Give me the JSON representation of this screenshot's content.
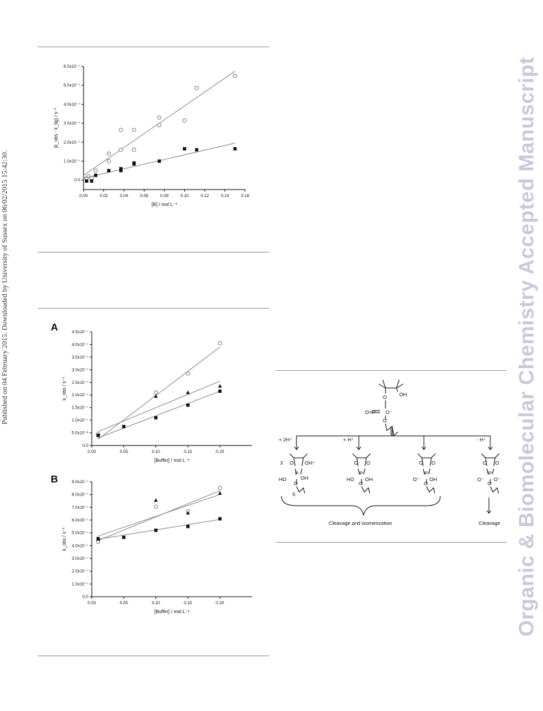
{
  "side_note": "Published on 04 February 2015. Downloaded by University of Sussex on 06/02/2015 15:42:30.",
  "watermark": "Organic & Biomolecular Chemistry Accepted Manuscript",
  "chart_data": [
    {
      "type": "scatter",
      "xlabel": "[B] / mol L⁻¹",
      "ylabel": "(k_obs - k_lig) / s⁻¹",
      "xlim": [
        0.0,
        0.16
      ],
      "ylim": [
        -5e-08,
        6e-07
      ],
      "xticks": [
        "0.00",
        "0.02",
        "0.04",
        "0.06",
        "0.08",
        "0.10",
        "0.12",
        "0.14",
        "0.16"
      ],
      "yticks": [
        "0.0",
        "1.0x10⁻⁷",
        "2.0x10⁻⁷",
        "3.0x10⁻⁷",
        "4.0x10⁻⁷",
        "5.0x10⁻⁷",
        "6.0x10⁻⁷"
      ],
      "series": [
        {
          "marker": "open-circle",
          "x": [
            0.003,
            0.005,
            0.008,
            0.012,
            0.025,
            0.025,
            0.037,
            0.037,
            0.05,
            0.05,
            0.075,
            0.075,
            0.1,
            0.112,
            0.15
          ],
          "y": [
            1e-08,
            2e-08,
            1e-08,
            5e-08,
            1.4e-07,
            1e-07,
            2.65e-07,
            1.6e-07,
            2.65e-07,
            1.6e-07,
            3.3e-07,
            2.9e-07,
            3.15e-07,
            4.85e-07,
            5.5e-07
          ],
          "fit": [
            [
              0.0,
              2.5e-08
            ],
            [
              0.15,
              5.75e-07
            ]
          ]
        },
        {
          "marker": "filled-square",
          "x": [
            0.003,
            0.008,
            0.012,
            0.025,
            0.037,
            0.037,
            0.05,
            0.05,
            0.075,
            0.1,
            0.112,
            0.15
          ],
          "y": [
            -5e-09,
            -5e-09,
            2.5e-08,
            5e-08,
            6e-08,
            5e-08,
            9e-08,
            8.5e-08,
            1e-07,
            1.65e-07,
            1.6e-07,
            1.65e-07
          ],
          "fit": [
            [
              0.0,
              1e-08
            ],
            [
              0.15,
              1.95e-07
            ]
          ]
        }
      ]
    },
    {
      "type": "scatter",
      "panel": "A",
      "xlabel": "[Buffer] / mol L⁻¹",
      "ylabel": "k_obs / s⁻¹",
      "xlim": [
        0.0,
        0.25
      ],
      "ylim": [
        0.0,
        4.5e-07
      ],
      "xticks": [
        "0.00",
        "0.05",
        "0.10",
        "0.15",
        "0.20"
      ],
      "yticks": [
        "0.0",
        "5.0x10⁻⁸",
        "1.0x10⁻⁷",
        "1.5x10⁻⁷",
        "2.0x10⁻⁷",
        "2.5x10⁻⁷",
        "3.0x10⁻⁷",
        "3.5x10⁻⁷",
        "4.0x10⁻⁷",
        "4.5x10⁻⁷"
      ],
      "series": [
        {
          "marker": "open-circle",
          "x": [
            0.01,
            0.1,
            0.15,
            0.2
          ],
          "y": [
            4.5e-08,
            2.1e-07,
            2.85e-07,
            4.05e-07
          ],
          "fit": [
            [
              0.01,
              2.5e-08
            ],
            [
              0.2,
              3.9e-07
            ]
          ]
        },
        {
          "marker": "filled-triangle",
          "x": [
            0.01,
            0.1,
            0.15,
            0.2
          ],
          "y": [
            4e-08,
            1.95e-07,
            2.1e-07,
            2.35e-07
          ],
          "fit": [
            [
              0.01,
              5.5e-08
            ],
            [
              0.2,
              2.55e-07
            ]
          ]
        },
        {
          "marker": "filled-square",
          "x": [
            0.01,
            0.05,
            0.1,
            0.15,
            0.2
          ],
          "y": [
            4e-08,
            7.5e-08,
            1.1e-07,
            1.6e-07,
            2.15e-07
          ],
          "fit": [
            [
              0.01,
              3e-08
            ],
            [
              0.2,
              2.15e-07
            ]
          ]
        }
      ]
    },
    {
      "type": "scatter",
      "panel": "B",
      "xlabel": "[Buffer] / mol L⁻¹",
      "ylabel": "k_obs / s⁻¹",
      "xlim": [
        0.0,
        0.25
      ],
      "ylim": [
        0.0,
        9e-07
      ],
      "xticks": [
        "0.00",
        "0.05",
        "0.10",
        "0.15",
        "0.20"
      ],
      "yticks": [
        "0.0",
        "1.0x10⁻⁷",
        "2.0x10⁻⁷",
        "3.0x10⁻⁷",
        "4.0x10⁻⁷",
        "5.0x10⁻⁷",
        "6.0x10⁻⁷",
        "7.0x10⁻⁷",
        "8.0x10⁻⁷",
        "9.0x10⁻⁷"
      ],
      "series": [
        {
          "marker": "open-circle",
          "x": [
            0.01,
            0.1,
            0.15,
            0.2
          ],
          "y": [
            4.3e-07,
            7.05e-07,
            6.7e-07,
            8.5e-07
          ],
          "fit": [
            [
              0.01,
              4.4e-07
            ],
            [
              0.2,
              8.3e-07
            ]
          ]
        },
        {
          "marker": "filled-triangle",
          "x": [
            0.01,
            0.1,
            0.15,
            0.2
          ],
          "y": [
            4.5e-07,
            7.55e-07,
            6.55e-07,
            8.1e-07
          ],
          "fit": [
            [
              0.01,
              4.75e-07
            ],
            [
              0.2,
              8e-07
            ]
          ]
        },
        {
          "marker": "filled-square",
          "x": [
            0.01,
            0.05,
            0.1,
            0.15,
            0.2
          ],
          "y": [
            4.55e-07,
            4.65e-07,
            5.2e-07,
            5.5e-07,
            6.1e-07
          ],
          "fit": [
            [
              0.01,
              4.5e-07
            ],
            [
              0.2,
              6.05e-07
            ]
          ]
        }
      ]
    }
  ],
  "scheme": {
    "conditions": [
      "+ 2H⁺",
      "+ H⁺",
      "",
      "- H⁺"
    ],
    "caption_left": "Cleavage and isomerization",
    "caption_right": "Cleavage",
    "labels": [
      "3´",
      "5´",
      "OH",
      "O",
      "P",
      "O⁻",
      "HO",
      "OH⁺"
    ]
  }
}
